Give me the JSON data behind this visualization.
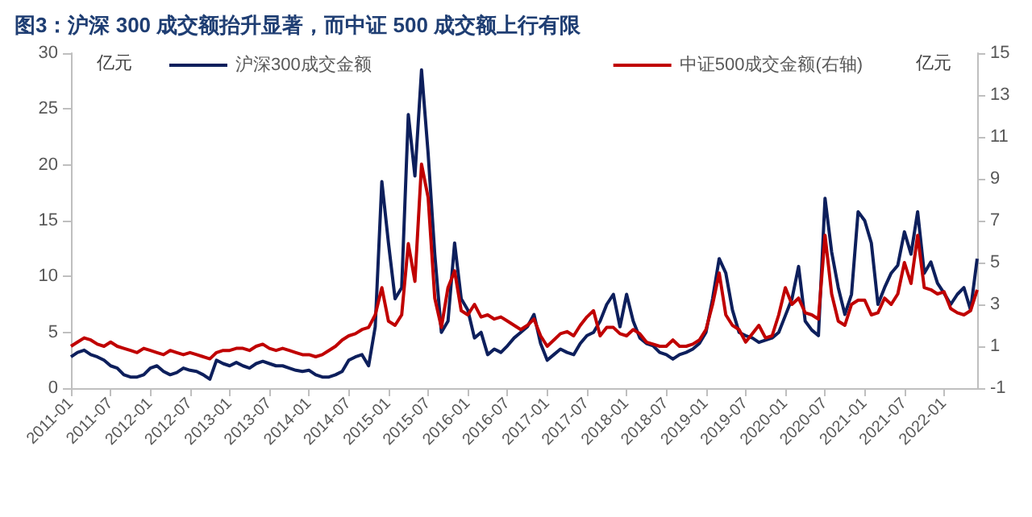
{
  "chart_data": {
    "type": "line",
    "title": "图3：沪深 300 成交额抬升显著，而中证 500 成交额上行有限",
    "ylabel": "亿元",
    "y2label": "亿元",
    "categories": [
      "2011-01",
      null,
      null,
      null,
      null,
      null,
      "2011-07",
      null,
      null,
      null,
      null,
      null,
      "2012-01",
      null,
      null,
      null,
      null,
      null,
      "2012-07",
      null,
      null,
      null,
      null,
      null,
      "2013-01",
      null,
      null,
      null,
      null,
      null,
      "2013-07",
      null,
      null,
      null,
      null,
      null,
      "2014-01",
      null,
      null,
      null,
      null,
      null,
      "2014-07",
      null,
      null,
      null,
      null,
      null,
      "2015-01",
      null,
      null,
      null,
      null,
      null,
      "2015-07",
      null,
      null,
      null,
      null,
      null,
      "2016-01",
      null,
      null,
      null,
      null,
      null,
      "2016-07",
      null,
      null,
      null,
      null,
      null,
      "2017-01",
      null,
      null,
      null,
      null,
      null,
      "2017-07",
      null,
      null,
      null,
      null,
      null,
      "2018-01",
      null,
      null,
      null,
      null,
      null,
      "2018-07",
      null,
      null,
      null,
      null,
      null,
      "2019-01",
      null,
      null,
      null,
      null,
      null,
      "2019-07",
      null,
      null,
      null,
      null,
      null,
      "2020-01",
      null,
      null,
      null,
      null,
      null,
      "2020-07",
      null,
      null,
      null,
      null,
      null,
      "2021-01",
      null,
      null,
      null,
      null,
      null,
      "2021-07",
      null,
      null,
      null,
      null,
      null,
      "2022-01",
      null,
      null,
      null,
      null,
      null
    ],
    "series": [
      {
        "name": "沪深300成交金额",
        "color": "#0d1f5c",
        "values": [
          2.8,
          3.2,
          3.4,
          3.0,
          2.8,
          2.5,
          2.0,
          1.8,
          1.2,
          1.0,
          1.0,
          1.2,
          1.8,
          2.0,
          1.5,
          1.2,
          1.4,
          1.8,
          1.6,
          1.5,
          1.2,
          0.8,
          2.5,
          2.2,
          2.0,
          2.3,
          2.0,
          1.8,
          2.2,
          2.4,
          2.2,
          2.0,
          2.0,
          1.8,
          1.6,
          1.5,
          1.6,
          1.2,
          1.0,
          1.0,
          1.2,
          1.5,
          2.5,
          2.8,
          3.0,
          2.0,
          5.5,
          18.5,
          13,
          8,
          9,
          24.5,
          19,
          28.5,
          21,
          12,
          5,
          6,
          13,
          8,
          7,
          4.5,
          5,
          3,
          3.5,
          3.2,
          3.8,
          4.5,
          5,
          5.5,
          6.6,
          4,
          2.5,
          3,
          3.5,
          3.2,
          3,
          4,
          4.7,
          5,
          6,
          7.5,
          8.4,
          5.5,
          8.4,
          6,
          4.5,
          4,
          3.8,
          3.2,
          3,
          2.6,
          3,
          3.2,
          3.5,
          4,
          5,
          8,
          11.6,
          10.3,
          7,
          5,
          4.7,
          4.5,
          4.1,
          4.3,
          4.5,
          5,
          6.5,
          8,
          10.9,
          6,
          5.2,
          4.7,
          17,
          12.2,
          9,
          6.6,
          8.4,
          15.8,
          15,
          13,
          7.5,
          9,
          10.3,
          11,
          14,
          12,
          15.8,
          10.3,
          11.3,
          9.4,
          8.5,
          7.5,
          8.4,
          9,
          7,
          11.6
        ]
      },
      {
        "name": "中证500成交金额(右轴)",
        "color": "#c00000",
        "axis": "y2",
        "values": [
          1.0,
          1.2,
          1.4,
          1.3,
          1.1,
          1.0,
          1.2,
          1.0,
          0.9,
          0.8,
          0.7,
          0.9,
          0.8,
          0.7,
          0.6,
          0.8,
          0.7,
          0.6,
          0.7,
          0.6,
          0.5,
          0.4,
          0.7,
          0.8,
          0.8,
          0.9,
          0.9,
          0.8,
          1.0,
          1.1,
          0.9,
          0.8,
          0.9,
          0.8,
          0.7,
          0.6,
          0.6,
          0.5,
          0.6,
          0.8,
          1.0,
          1.3,
          1.5,
          1.6,
          1.8,
          1.9,
          2.5,
          3.8,
          2.2,
          2.0,
          2.5,
          5.9,
          4.1,
          9.7,
          8.1,
          3.3,
          1.9,
          3.8,
          4.6,
          2.7,
          2.5,
          3.0,
          2.4,
          2.5,
          2.3,
          2.4,
          2.2,
          2.0,
          1.8,
          2.0,
          2.3,
          1.5,
          1.0,
          1.3,
          1.6,
          1.7,
          1.5,
          2.0,
          2.4,
          2.7,
          1.5,
          1.9,
          1.9,
          1.6,
          1.5,
          1.8,
          1.6,
          1.2,
          1.1,
          1.0,
          1.0,
          1.3,
          1.0,
          1.0,
          1.1,
          1.3,
          1.8,
          3.0,
          4.5,
          2.5,
          2.0,
          1.8,
          1.2,
          1.6,
          2.0,
          1.4,
          1.5,
          2.5,
          3.8,
          3.0,
          3.3,
          2.6,
          2.5,
          2.3,
          6.3,
          3.5,
          2.2,
          2.0,
          3.0,
          3.2,
          3.2,
          2.5,
          2.6,
          3.3,
          3.0,
          3.5,
          5.0,
          4.0,
          6.3,
          3.8,
          3.7,
          3.5,
          3.6,
          2.8,
          2.6,
          2.5,
          2.7,
          3.7
        ]
      }
    ],
    "ylim": [
      0,
      30
    ],
    "yticks": [
      0,
      5,
      10,
      15,
      20,
      25,
      30
    ],
    "y2lim": [
      -1,
      15
    ],
    "y2ticks": [
      -1,
      1,
      3,
      5,
      7,
      9,
      11,
      13,
      15
    ],
    "legend": "top",
    "grid": false,
    "marker": "none",
    "line_style": "solid"
  }
}
